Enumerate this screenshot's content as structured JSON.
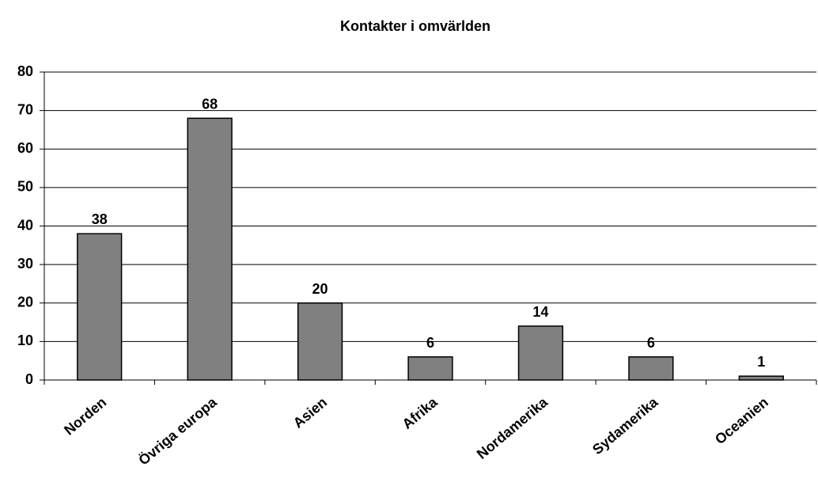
{
  "chart_data": {
    "type": "bar",
    "title": "Kontakter i omvärlden",
    "categories": [
      "Norden",
      "Övriga europa",
      "Asien",
      "Afrika",
      "Nordamerika",
      "Sydamerika",
      "Oceanien"
    ],
    "values": [
      38,
      68,
      20,
      6,
      14,
      6,
      1
    ],
    "color": "#808080",
    "ylim": [
      0,
      80
    ],
    "yticks": [
      0,
      10,
      20,
      30,
      40,
      50,
      60,
      70,
      80
    ],
    "grid": true
  }
}
